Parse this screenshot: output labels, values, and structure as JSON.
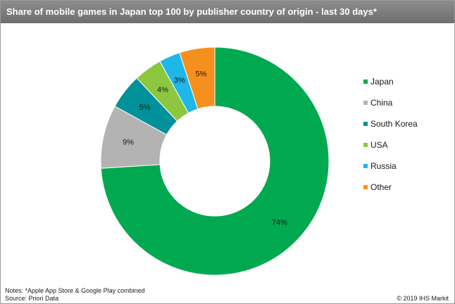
{
  "title": "Share of mobile games in Japan top 100 by publisher country of origin - last 30 days*",
  "chart_data": {
    "type": "pie",
    "donut": true,
    "start_angle": "top, clockwise",
    "legend_position": "right",
    "slices": [
      {
        "name": "Japan",
        "value": 74,
        "label": "74%",
        "color": "#00a950"
      },
      {
        "name": "China",
        "value": 9,
        "label": "9%",
        "color": "#b3b3b3"
      },
      {
        "name": "South Korea",
        "value": 5,
        "label": "5%",
        "color": "#00919a"
      },
      {
        "name": "USA",
        "value": 4,
        "label": "4%",
        "color": "#8dc63f"
      },
      {
        "name": "Russia",
        "value": 3,
        "label": "3%",
        "color": "#1fb6e8"
      },
      {
        "name": "Other",
        "value": 5,
        "label": "5%",
        "color": "#f5901e"
      }
    ]
  },
  "footer": {
    "notes": "Notes: *Apple App Store & Google Play combined",
    "source": "Source: Priori Data",
    "copyright": "© 2019 IHS Markit"
  }
}
